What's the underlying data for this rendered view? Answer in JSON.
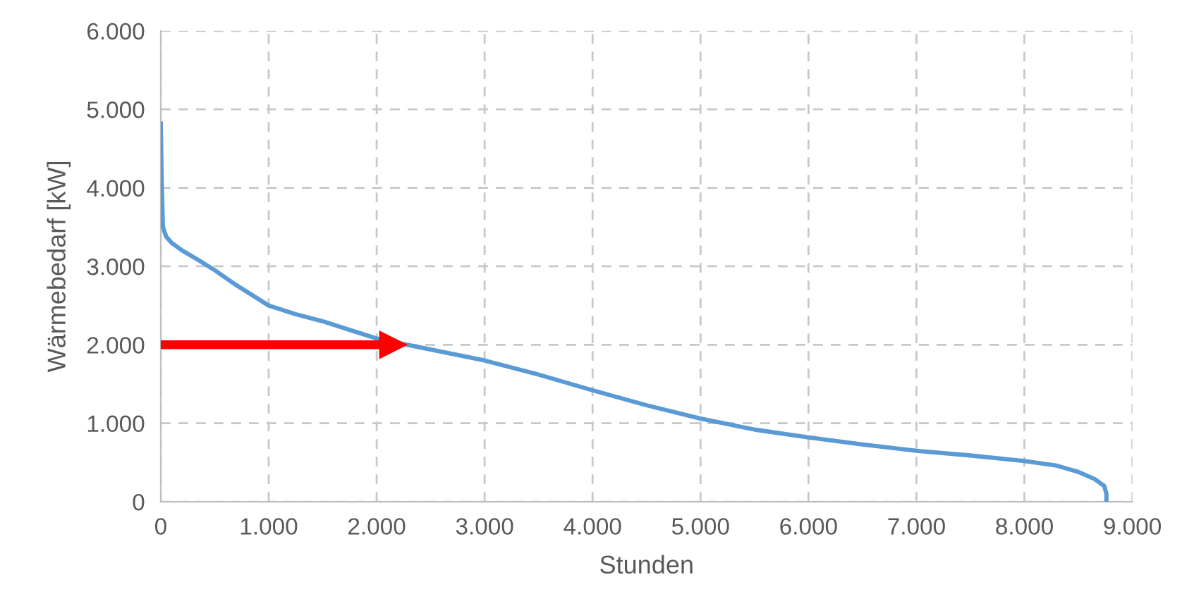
{
  "chart_data": {
    "type": "line",
    "xlabel": "Stunden",
    "ylabel": "Wärmebedarf [kW]",
    "xlim": [
      0,
      9000
    ],
    "ylim": [
      0,
      6000
    ],
    "xticks": [
      {
        "value": 0,
        "label": "0"
      },
      {
        "value": 1000,
        "label": "1.000"
      },
      {
        "value": 2000,
        "label": "2.000"
      },
      {
        "value": 3000,
        "label": "3.000"
      },
      {
        "value": 4000,
        "label": "4.000"
      },
      {
        "value": 5000,
        "label": "5.000"
      },
      {
        "value": 6000,
        "label": "6.000"
      },
      {
        "value": 7000,
        "label": "7.000"
      },
      {
        "value": 8000,
        "label": "8.000"
      },
      {
        "value": 9000,
        "label": "9.000"
      }
    ],
    "yticks": [
      {
        "value": 0,
        "label": "0"
      },
      {
        "value": 1000,
        "label": "1.000"
      },
      {
        "value": 2000,
        "label": "2.000"
      },
      {
        "value": 3000,
        "label": "3.000"
      },
      {
        "value": 4000,
        "label": "4.000"
      },
      {
        "value": 5000,
        "label": "5.000"
      },
      {
        "value": 6000,
        "label": "6.000"
      }
    ],
    "grid": true,
    "line_style": "solid",
    "series": [
      {
        "color": "#5b9bd5",
        "marker": "none",
        "x": [
          0,
          10,
          20,
          50,
          100,
          200,
          350,
          500,
          700,
          1000,
          1250,
          1500,
          2000,
          2500,
          3000,
          3500,
          4000,
          4500,
          5000,
          5500,
          6000,
          6500,
          7000,
          7500,
          8000,
          8300,
          8500,
          8650,
          8740,
          8760,
          8760
        ],
        "values": [
          4820,
          4000,
          3500,
          3380,
          3300,
          3200,
          3080,
          2950,
          2760,
          2500,
          2390,
          2300,
          2080,
          1940,
          1800,
          1620,
          1420,
          1230,
          1060,
          920,
          820,
          730,
          650,
          590,
          520,
          460,
          380,
          290,
          200,
          100,
          0
        ]
      },
      {
        "color": "#ff0000",
        "marker": "triangle",
        "x": [
          0,
          2150
        ],
        "values": [
          2000,
          2000
        ]
      }
    ]
  }
}
